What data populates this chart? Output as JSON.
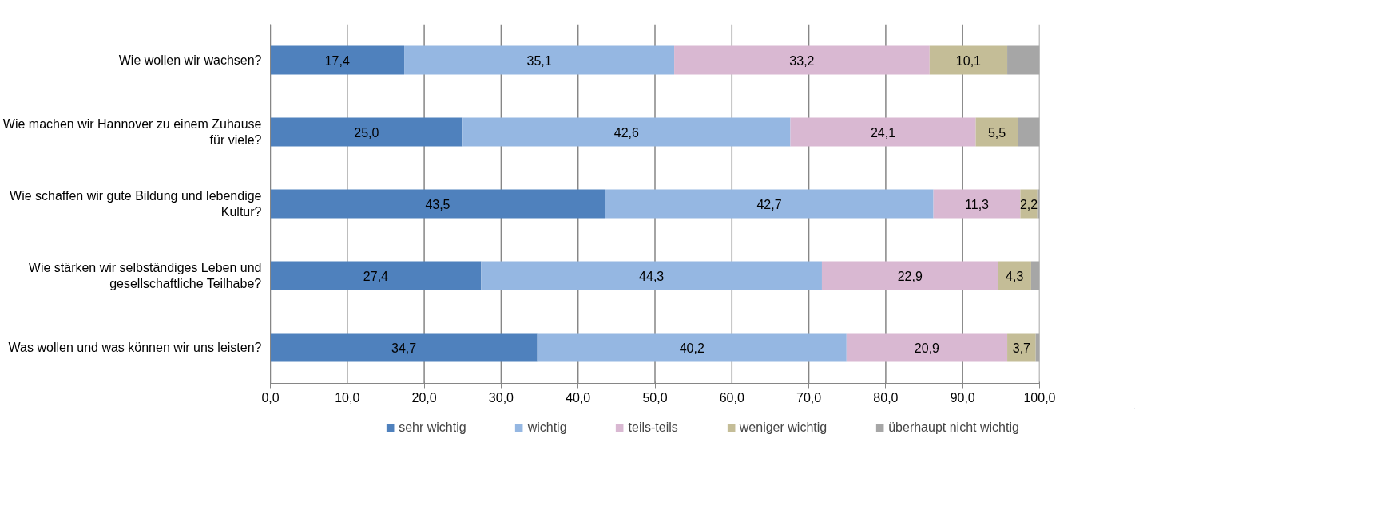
{
  "chart_data": {
    "type": "bar",
    "orientation": "horizontal",
    "stacked": true,
    "categories": [
      "Wie wollen wir wachsen?",
      "Wie machen wir Hannover zu einem Zuhause für viele?",
      "Wie schaffen wir gute Bildung und lebendige Kultur?",
      "Wie stärken wir selbständiges Leben und gesellschaftliche Teilhabe?",
      "Was wollen und was können wir uns leisten?"
    ],
    "series": [
      {
        "name": "sehr wichtig",
        "color": "#4f81bd",
        "values": [
          17.4,
          25.0,
          43.5,
          27.4,
          34.7
        ],
        "value_labels": [
          "17,4",
          "25,0",
          "43,5",
          "27,4",
          "34,7"
        ]
      },
      {
        "name": "wichtig",
        "color": "#95b7e2",
        "values": [
          35.1,
          42.6,
          42.7,
          44.3,
          40.2
        ],
        "value_labels": [
          "35,1",
          "42,6",
          "42,7",
          "44,3",
          "40,2"
        ]
      },
      {
        "name": "teils-teils",
        "color": "#d9b8d2",
        "values": [
          33.2,
          24.1,
          11.3,
          22.9,
          20.9
        ],
        "value_labels": [
          "33,2",
          "24,1",
          "11,3",
          "22,9",
          "20,9"
        ]
      },
      {
        "name": "weniger wichtig",
        "color": "#c4bd97",
        "values": [
          10.1,
          5.5,
          2.2,
          4.3,
          3.7
        ],
        "value_labels": [
          "10,1",
          "5,5",
          "2,2",
          "4,3",
          "3,7"
        ]
      },
      {
        "name": "überhaupt nicht wichtig",
        "color": "#a6a6a6",
        "values": [
          4.2,
          2.8,
          0.3,
          1.1,
          0.5
        ],
        "value_labels": [
          null,
          null,
          null,
          null,
          null
        ]
      }
    ],
    "xlim": [
      0,
      100
    ],
    "xticks": [
      {
        "value": 0,
        "label": "0,0"
      },
      {
        "value": 10,
        "label": "10,0"
      },
      {
        "value": 20,
        "label": "20,0"
      },
      {
        "value": 30,
        "label": "30,0"
      },
      {
        "value": 40,
        "label": "40,0"
      },
      {
        "value": 50,
        "label": "50,0"
      },
      {
        "value": 60,
        "label": "60,0"
      },
      {
        "value": 70,
        "label": "70,0"
      },
      {
        "value": 80,
        "label": "80,0"
      },
      {
        "value": 90,
        "label": "90,0"
      },
      {
        "value": 100,
        "label": "100,0"
      }
    ],
    "grid": "x",
    "legend": "bottom"
  }
}
